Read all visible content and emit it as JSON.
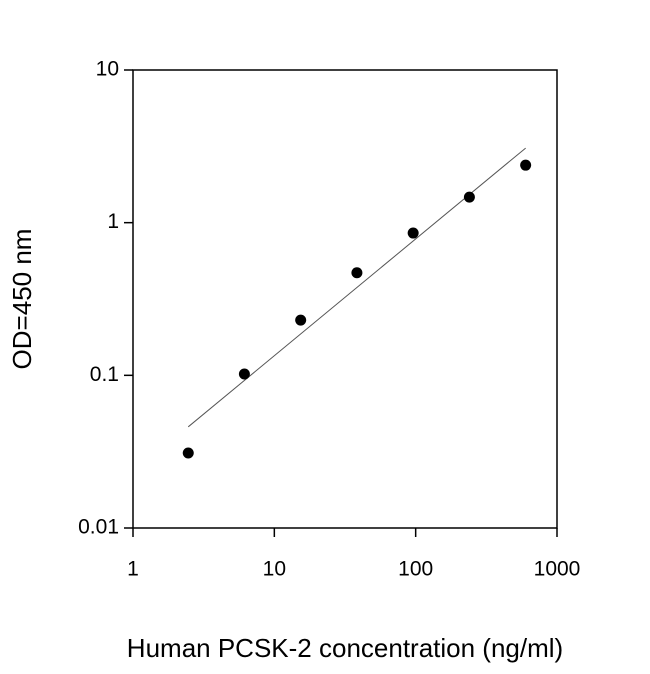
{
  "chart_data": {
    "type": "scatter",
    "x_label": "Human PCSK-2 concentration (ng/ml)",
    "y_label": "OD=450 nm",
    "x": [
      2.46,
      6.14,
      15.36,
      38.4,
      96,
      240,
      600
    ],
    "values": [
      0.031,
      0.102,
      0.23,
      0.47,
      0.855,
      1.47,
      2.38
    ],
    "color": "#000000",
    "fit": {
      "x": [
        2.46,
        600
      ],
      "y": [
        0.046,
        3.08
      ],
      "color": "#555555"
    },
    "xscale": "log",
    "yscale": "log",
    "xlim": [
      1,
      1000
    ],
    "ylim": [
      0.01,
      10
    ],
    "xticks": [
      1,
      10,
      100,
      1000
    ],
    "yticks": [
      0.01,
      0.1,
      1,
      10
    ]
  }
}
